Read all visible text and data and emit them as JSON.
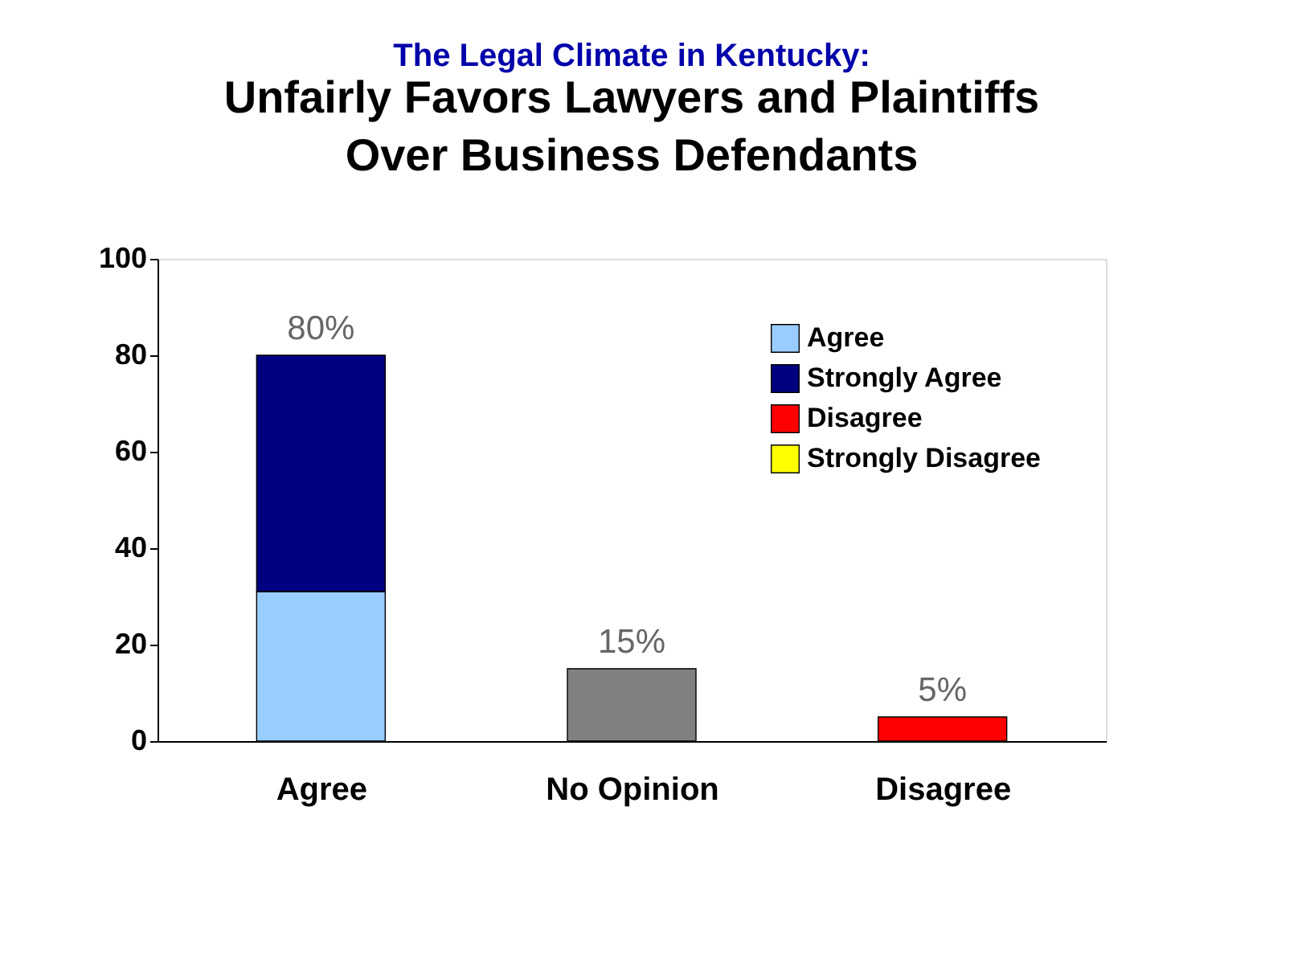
{
  "chart_data": {
    "type": "bar",
    "stacked": true,
    "title": "The Legal Climate in Kentucky:",
    "subtitle": "Unfairly Favors Lawyers and Plaintiffs Over Business Defendants",
    "categories": [
      "Agree",
      "No Opinion",
      "Disagree"
    ],
    "series": [
      {
        "name": "Agree",
        "color": "#99ccff",
        "values": [
          31,
          null,
          null
        ]
      },
      {
        "name": "Strongly Agree",
        "color": "#000080",
        "values": [
          49,
          null,
          null
        ]
      },
      {
        "color": "#808080",
        "values": [
          null,
          15,
          null
        ]
      },
      {
        "name": "Disagree",
        "color": "#ff0000",
        "values": [
          null,
          null,
          5
        ]
      },
      {
        "name": "Strongly Disagree",
        "color": "#ffff00",
        "values": [
          null,
          null,
          null
        ]
      }
    ],
    "totals": [
      "80%",
      "15%",
      "5%"
    ],
    "ylim": [
      0,
      100
    ],
    "yticks": [
      0,
      20,
      40,
      60,
      80,
      100
    ],
    "grid": false,
    "legend": "top right"
  }
}
